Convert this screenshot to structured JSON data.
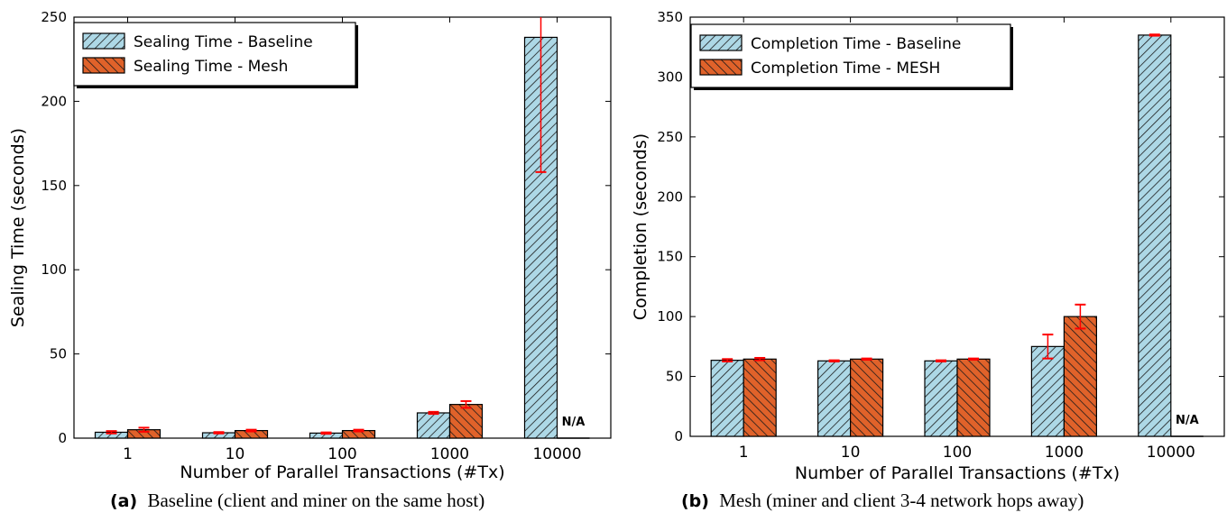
{
  "colors": {
    "baseline_fill": "#add8e6",
    "mesh_fill": "#e0622a",
    "error_bar": "#ff0000",
    "hatch": "#1a1a1a"
  },
  "chart_data": [
    {
      "type": "bar",
      "caption_tag": "(a)",
      "caption_text": "Baseline (client and miner on the same host)",
      "title": "",
      "xlabel": "Number of Parallel Transactions (#Tx)",
      "ylabel": "Sealing Time (seconds)",
      "ylim": [
        0,
        250
      ],
      "yticks": [
        0,
        50,
        100,
        150,
        200,
        250
      ],
      "categories": [
        "1",
        "10",
        "100",
        "1000",
        "10000"
      ],
      "grid": false,
      "legend_position": "top-left",
      "series": [
        {
          "name": "Sealing Time - Baseline",
          "color_key": "baseline_fill",
          "hatch": "diagonal-down",
          "values": [
            3.5,
            3.2,
            3.0,
            15,
            238
          ],
          "errors": [
            0.7,
            0.4,
            0.4,
            0.6,
            80
          ]
        },
        {
          "name": "Sealing Time - Mesh",
          "color_key": "mesh_fill",
          "hatch": "diagonal-up",
          "values": [
            5,
            4.5,
            4.5,
            20,
            null
          ],
          "errors": [
            1.2,
            0.5,
            0.5,
            2.0,
            null
          ]
        }
      ],
      "annotations": [
        {
          "text": "N/A",
          "category": "10000",
          "series": 1
        }
      ]
    },
    {
      "type": "bar",
      "caption_tag": "(b)",
      "caption_text": "Mesh (miner and client 3-4 network hops away)",
      "title": "",
      "xlabel": "Number of Parallel Transactions (#Tx)",
      "ylabel": "Completion (seconds)",
      "ylim": [
        0,
        350
      ],
      "yticks": [
        0,
        50,
        100,
        150,
        200,
        250,
        300,
        350
      ],
      "categories": [
        "1",
        "10",
        "100",
        "1000",
        "10000"
      ],
      "grid": false,
      "legend_position": "top-left",
      "series": [
        {
          "name": "Completion Time - Baseline",
          "color_key": "baseline_fill",
          "hatch": "diagonal-down",
          "values": [
            63.5,
            63,
            63,
            75,
            335
          ],
          "errors": [
            1,
            0.5,
            0.5,
            10,
            0.5
          ]
        },
        {
          "name": "Completion Time - MESH",
          "color_key": "mesh_fill",
          "hatch": "diagonal-up",
          "values": [
            64.5,
            64.5,
            64.5,
            100,
            null
          ],
          "errors": [
            1,
            0.5,
            0.5,
            10,
            null
          ]
        }
      ],
      "annotations": [
        {
          "text": "N/A",
          "category": "10000",
          "series": 1
        }
      ]
    }
  ]
}
